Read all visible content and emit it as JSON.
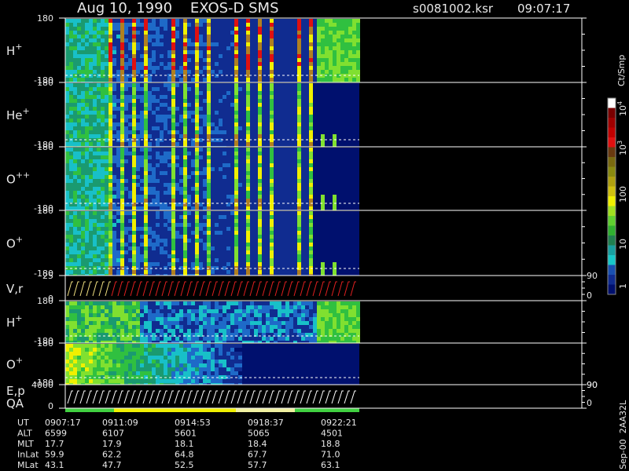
{
  "header": {
    "title": "Aug 10, 1990    EXOS-D SMS",
    "file": "s0081002.ksr",
    "time": "09:07:17"
  },
  "panels": [
    {
      "label": "H",
      "sup": "+",
      "top": "180",
      "bottom": "-180"
    },
    {
      "label": "He",
      "sup": "+",
      "top": "180",
      "bottom": "-180"
    },
    {
      "label": "O",
      "sup": "++",
      "top": "180",
      "bottom": "-180"
    },
    {
      "label": "O",
      "sup": "+",
      "top": "180",
      "bottom": "-180"
    },
    {
      "label": "V,r",
      "top": "25",
      "bottom": "0",
      "right_top": "90",
      "right_bottom": "0"
    },
    {
      "label": "H",
      "sup": "+",
      "top": "180",
      "bottom": "-180"
    },
    {
      "label": "O",
      "sup": "+",
      "top": "180",
      "bottom": "-180",
      "right_bottom": "90"
    },
    {
      "label": "E,p",
      "label2": "QA",
      "top": "4000",
      "bottom": "0",
      "right_top": "90",
      "right_bottom": "0"
    }
  ],
  "colorbar": {
    "unit": "Ct/Smp",
    "labels": [
      {
        "base": "10",
        "exp": "4"
      },
      {
        "base": "10",
        "exp": "3"
      },
      "100",
      "10",
      "1"
    ]
  },
  "footer": {
    "rows": [
      {
        "name": "UT",
        "values": [
          "0907:17",
          "0911:09",
          "0914:53",
          "0918:37",
          "0922:21"
        ]
      },
      {
        "name": "ALT",
        "values": [
          "6599",
          "6107",
          "5601",
          "5065",
          "4501"
        ]
      },
      {
        "name": "MLT",
        "values": [
          "17.7",
          "17.9",
          "18.1",
          "18.4",
          "18.8"
        ]
      },
      {
        "name": "InLat",
        "values": [
          "59.9",
          "62.2",
          "64.8",
          "67.7",
          "71.0"
        ]
      },
      {
        "name": "MLat",
        "values": [
          "43.1",
          "47.7",
          "52.5",
          "57.7",
          "63.1"
        ]
      }
    ]
  },
  "footnote": "Sep-00  2AA32L"
}
